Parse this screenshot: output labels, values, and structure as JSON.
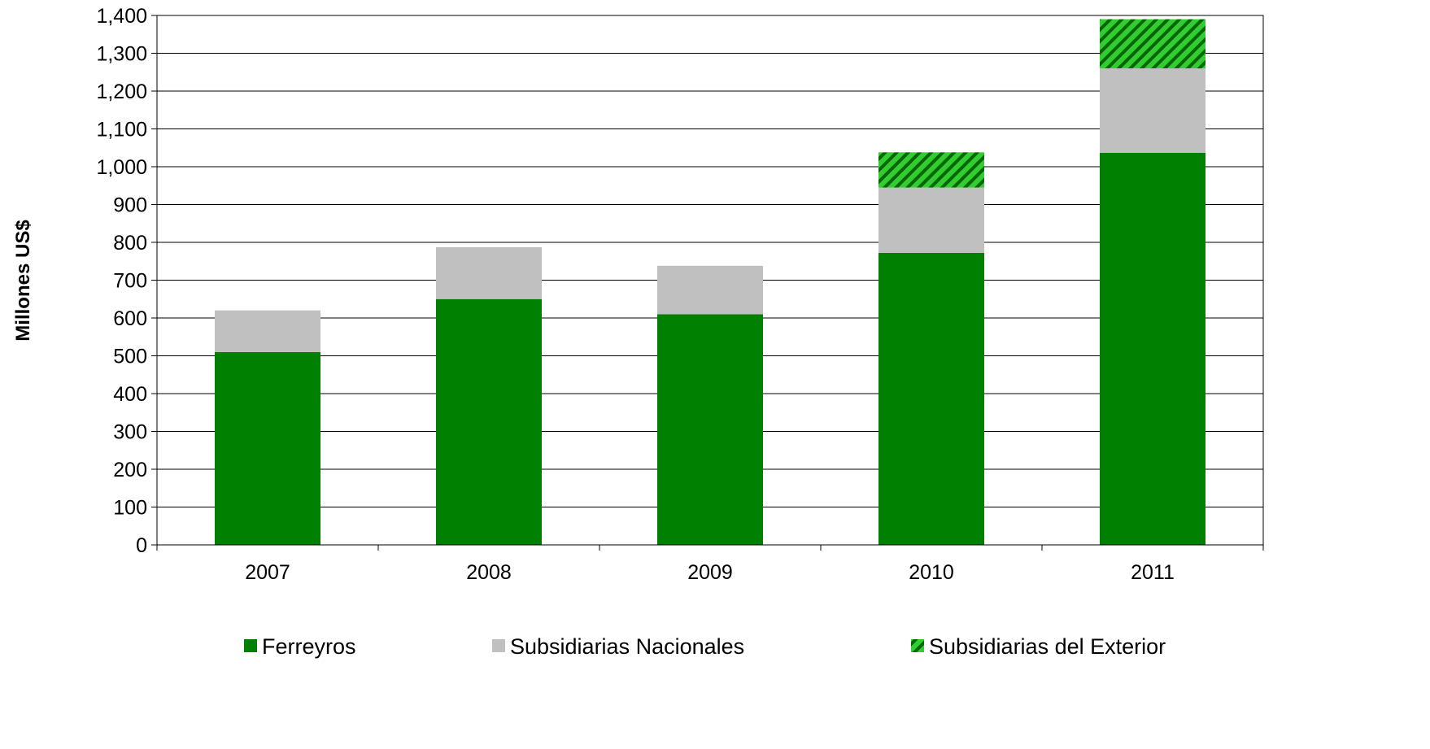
{
  "chart_data": {
    "type": "bar",
    "stacked": true,
    "categories": [
      "2007",
      "2008",
      "2009",
      "2010",
      "2011"
    ],
    "series": [
      {
        "name": "Ferreyros",
        "values": [
          510,
          650,
          610,
          772,
          1037
        ],
        "color": "#008000",
        "pattern": "solid"
      },
      {
        "name": "Subsidiarias Nacionales",
        "values": [
          110,
          137,
          128,
          173,
          223
        ],
        "color": "#C0C0C0",
        "pattern": "solid"
      },
      {
        "name": "Subsidiarias del Exterior",
        "values": [
          0,
          0,
          0,
          93,
          130
        ],
        "color": "#33CC33",
        "pattern": "diagonal-hatch"
      }
    ],
    "ylabel": "Millones US$",
    "xlabel": "",
    "ylim": [
      0,
      1400
    ],
    "yticks": [
      0,
      100,
      200,
      300,
      400,
      500,
      600,
      700,
      800,
      900,
      1000,
      1100,
      1200,
      1300,
      1400
    ],
    "ytick_labels": [
      "0",
      "100",
      "200",
      "300",
      "400",
      "500",
      "600",
      "700",
      "800",
      "900",
      "1,000",
      "1,100",
      "1,200",
      "1,300",
      "1,400"
    ],
    "grid": true,
    "legend_position": "bottom"
  }
}
